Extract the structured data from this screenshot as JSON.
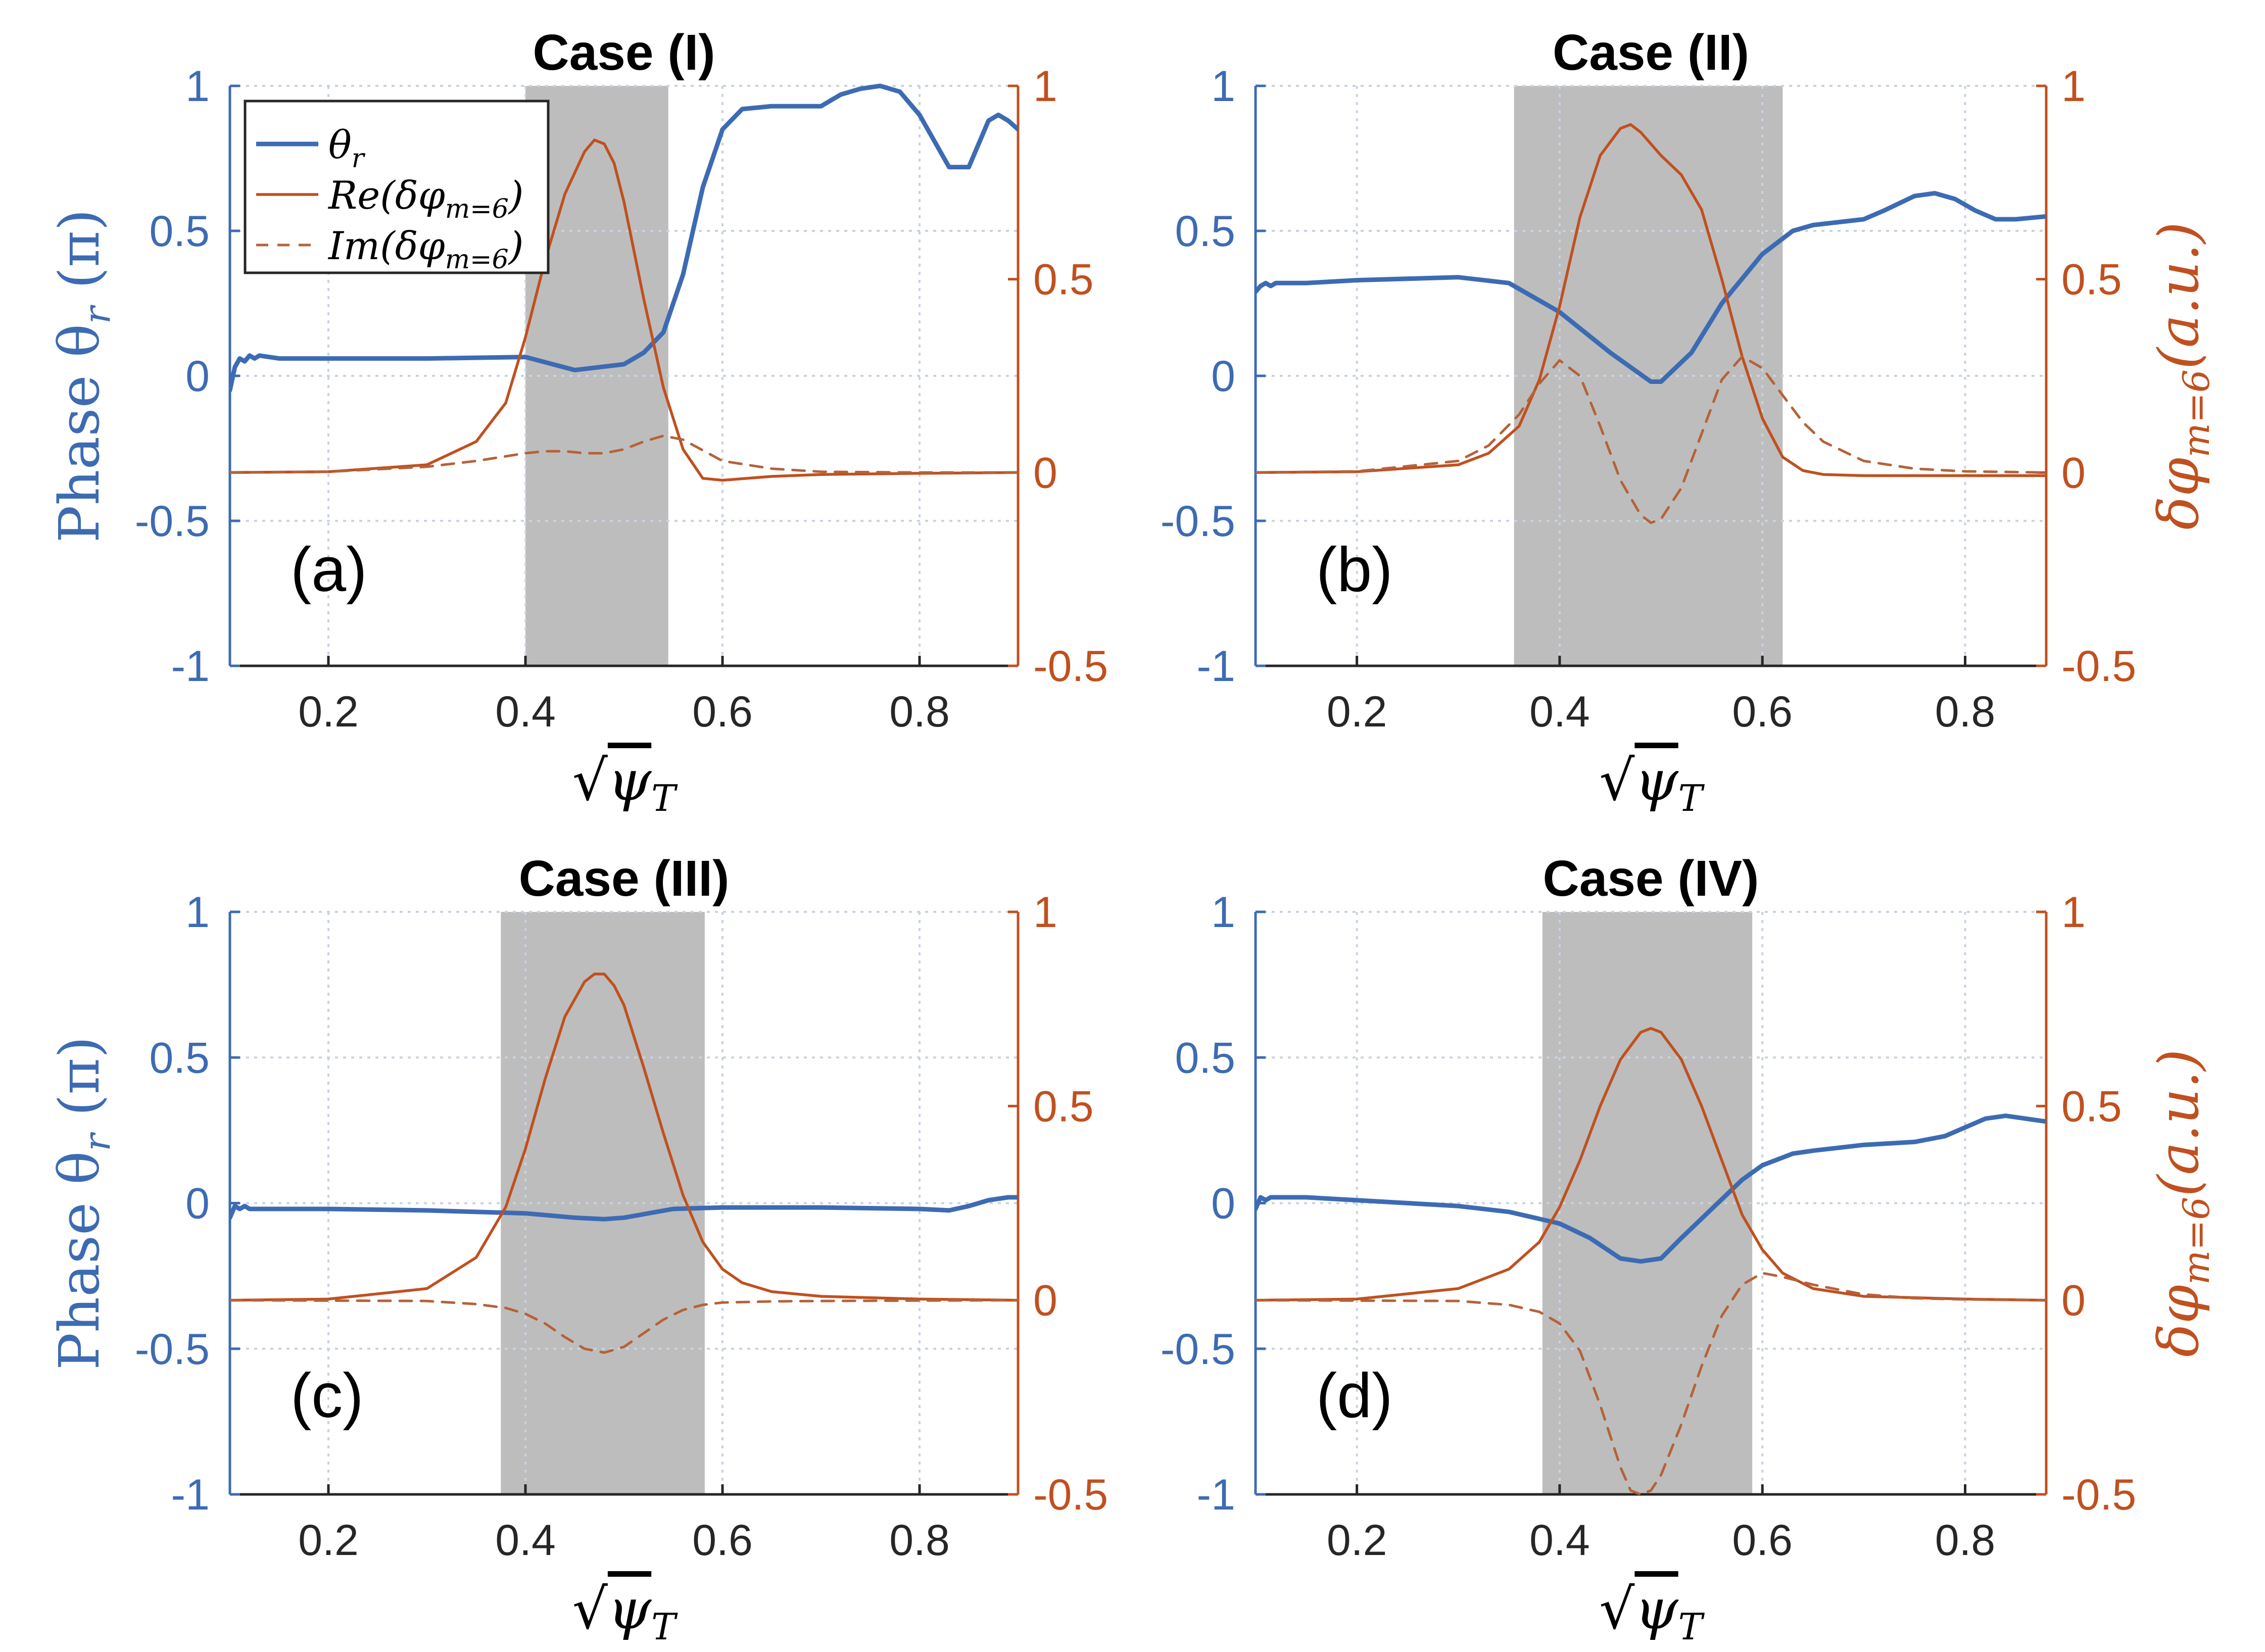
{
  "colors": {
    "theta": "#3D6BB3",
    "re": "#C0501F",
    "im": "#B5623A",
    "shade": "#BDBDBD",
    "grid": "#C9D3E0",
    "axis": "#262626"
  },
  "legend": {
    "theta_label": "θ",
    "theta_sub": "r",
    "re_label": "Re(δφ",
    "re_sub": "m=6",
    "re_close": ")",
    "im_label": "Im(δφ",
    "im_sub": "m=6",
    "im_close": ")"
  },
  "axis_text": {
    "xlabel_radical": "√",
    "xlabel_main": "ψ",
    "xlabel_sub": "T",
    "ylabel_left": "Phase θ",
    "ylabel_left_sub": "r",
    "ylabel_left_unit": " (π)",
    "ylabel_right": "δφ",
    "ylabel_right_sub": "m=6",
    "ylabel_right_unit": "(a.u.)"
  },
  "chart_data": [
    {
      "type": "line",
      "title": "Case (I)",
      "panel_label": "(a)",
      "xlim": [
        0.1,
        0.9
      ],
      "ylim_left": [
        -1,
        1
      ],
      "ylim_right": [
        -0.5,
        1
      ],
      "xticks": [
        "0.2",
        "0.4",
        "0.6",
        "0.8"
      ],
      "yticks_left": [
        "-1",
        "-0.5",
        "0",
        "0.5",
        "1"
      ],
      "yticks_right": [
        "-0.5",
        "0",
        "0.5",
        "1"
      ],
      "shaded_region": [
        0.4,
        0.545
      ],
      "series": [
        {
          "name": "θr",
          "axis": "left",
          "style": "solid",
          "x": [
            0.1,
            0.105,
            0.11,
            0.115,
            0.12,
            0.125,
            0.13,
            0.15,
            0.2,
            0.3,
            0.4,
            0.45,
            0.5,
            0.52,
            0.54,
            0.56,
            0.58,
            0.6,
            0.62,
            0.65,
            0.7,
            0.72,
            0.74,
            0.76,
            0.78,
            0.8,
            0.82,
            0.83,
            0.85,
            0.86,
            0.87,
            0.88,
            0.89,
            0.9
          ],
          "values": [
            -0.05,
            0.03,
            0.06,
            0.05,
            0.07,
            0.06,
            0.07,
            0.06,
            0.06,
            0.06,
            0.065,
            0.02,
            0.04,
            0.08,
            0.15,
            0.35,
            0.65,
            0.85,
            0.92,
            0.93,
            0.93,
            0.97,
            0.99,
            1.0,
            0.98,
            0.9,
            0.78,
            0.72,
            0.72,
            0.8,
            0.88,
            0.9,
            0.88,
            0.85
          ]
        },
        {
          "name": "Re(δφm=6)",
          "axis": "right",
          "style": "solid",
          "x": [
            0.1,
            0.2,
            0.3,
            0.35,
            0.38,
            0.4,
            0.42,
            0.44,
            0.46,
            0.47,
            0.48,
            0.49,
            0.5,
            0.52,
            0.54,
            0.56,
            0.58,
            0.6,
            0.65,
            0.7,
            0.8,
            0.9
          ],
          "values": [
            0.0,
            0.002,
            0.02,
            0.08,
            0.18,
            0.35,
            0.55,
            0.72,
            0.83,
            0.86,
            0.85,
            0.8,
            0.7,
            0.45,
            0.22,
            0.06,
            -0.015,
            -0.02,
            -0.01,
            -0.005,
            -0.002,
            0.0
          ]
        },
        {
          "name": "Im(δφm=6)",
          "axis": "right",
          "style": "dashed",
          "x": [
            0.1,
            0.2,
            0.3,
            0.35,
            0.4,
            0.42,
            0.44,
            0.46,
            0.48,
            0.5,
            0.52,
            0.54,
            0.56,
            0.6,
            0.65,
            0.7,
            0.8,
            0.9
          ],
          "values": [
            0.0,
            0.002,
            0.015,
            0.03,
            0.05,
            0.055,
            0.055,
            0.05,
            0.05,
            0.06,
            0.08,
            0.095,
            0.085,
            0.03,
            0.01,
            0.002,
            0.0,
            0.0
          ]
        }
      ]
    },
    {
      "type": "line",
      "title": "Case (II)",
      "panel_label": "(b)",
      "xlim": [
        0.1,
        0.88
      ],
      "ylim_left": [
        -1,
        1
      ],
      "ylim_right": [
        -0.5,
        1
      ],
      "xticks": [
        "0.2",
        "0.4",
        "0.6",
        "0.8"
      ],
      "yticks_left": [
        "-1",
        "-0.5",
        "0",
        "0.5",
        "1"
      ],
      "yticks_right": [
        "-0.5",
        "0",
        "0.5",
        "1"
      ],
      "shaded_region": [
        0.355,
        0.62
      ],
      "series": [
        {
          "name": "θr",
          "axis": "left",
          "style": "solid",
          "x": [
            0.1,
            0.105,
            0.11,
            0.115,
            0.12,
            0.15,
            0.2,
            0.3,
            0.35,
            0.4,
            0.45,
            0.49,
            0.5,
            0.53,
            0.56,
            0.6,
            0.63,
            0.65,
            0.7,
            0.72,
            0.75,
            0.77,
            0.79,
            0.81,
            0.83,
            0.85,
            0.88
          ],
          "values": [
            0.29,
            0.31,
            0.32,
            0.31,
            0.32,
            0.32,
            0.33,
            0.34,
            0.32,
            0.22,
            0.08,
            -0.02,
            -0.02,
            0.08,
            0.25,
            0.42,
            0.5,
            0.52,
            0.54,
            0.57,
            0.62,
            0.63,
            0.61,
            0.57,
            0.54,
            0.54,
            0.55
          ]
        },
        {
          "name": "Re(δφm=6)",
          "axis": "right",
          "style": "solid",
          "x": [
            0.1,
            0.2,
            0.3,
            0.33,
            0.36,
            0.38,
            0.4,
            0.42,
            0.44,
            0.46,
            0.47,
            0.48,
            0.5,
            0.52,
            0.54,
            0.56,
            0.58,
            0.6,
            0.62,
            0.64,
            0.66,
            0.7,
            0.8,
            0.88
          ],
          "values": [
            0.0,
            0.002,
            0.02,
            0.05,
            0.12,
            0.24,
            0.43,
            0.66,
            0.82,
            0.89,
            0.9,
            0.88,
            0.82,
            0.77,
            0.68,
            0.5,
            0.3,
            0.14,
            0.04,
            0.005,
            -0.005,
            -0.008,
            -0.008,
            -0.008
          ]
        },
        {
          "name": "Im(δφm=6)",
          "axis": "right",
          "style": "dashed",
          "x": [
            0.1,
            0.2,
            0.3,
            0.33,
            0.36,
            0.38,
            0.4,
            0.42,
            0.44,
            0.46,
            0.48,
            0.49,
            0.5,
            0.52,
            0.54,
            0.56,
            0.58,
            0.6,
            0.62,
            0.64,
            0.66,
            0.7,
            0.75,
            0.8,
            0.88
          ],
          "values": [
            0.0,
            0.003,
            0.03,
            0.07,
            0.15,
            0.23,
            0.29,
            0.25,
            0.12,
            -0.02,
            -0.11,
            -0.13,
            -0.12,
            -0.04,
            0.1,
            0.24,
            0.3,
            0.27,
            0.2,
            0.13,
            0.08,
            0.03,
            0.01,
            0.003,
            0.0
          ]
        }
      ]
    },
    {
      "type": "line",
      "title": "Case (III)",
      "panel_label": "(c)",
      "xlim": [
        0.1,
        0.9
      ],
      "ylim_left": [
        -1,
        1
      ],
      "ylim_right": [
        -0.5,
        1
      ],
      "xticks": [
        "0.2",
        "0.4",
        "0.6",
        "0.8"
      ],
      "yticks_left": [
        "-1",
        "-0.5",
        "0",
        "0.5",
        "1"
      ],
      "yticks_right": [
        "-0.5",
        "0",
        "0.5",
        "1"
      ],
      "shaded_region": [
        0.375,
        0.582
      ],
      "series": [
        {
          "name": "θr",
          "axis": "left",
          "style": "solid",
          "x": [
            0.1,
            0.105,
            0.11,
            0.115,
            0.12,
            0.15,
            0.2,
            0.3,
            0.4,
            0.45,
            0.48,
            0.5,
            0.55,
            0.6,
            0.7,
            0.8,
            0.83,
            0.85,
            0.87,
            0.89,
            0.9
          ],
          "values": [
            -0.05,
            -0.01,
            -0.02,
            -0.01,
            -0.02,
            -0.02,
            -0.02,
            -0.025,
            -0.035,
            -0.05,
            -0.055,
            -0.05,
            -0.02,
            -0.015,
            -0.015,
            -0.02,
            -0.025,
            -0.01,
            0.01,
            0.02,
            0.02
          ]
        },
        {
          "name": "Re(δφm=6)",
          "axis": "right",
          "style": "solid",
          "x": [
            0.1,
            0.2,
            0.3,
            0.35,
            0.38,
            0.4,
            0.42,
            0.44,
            0.46,
            0.47,
            0.48,
            0.49,
            0.5,
            0.52,
            0.54,
            0.56,
            0.58,
            0.6,
            0.62,
            0.65,
            0.7,
            0.8,
            0.9
          ],
          "values": [
            0.0,
            0.003,
            0.03,
            0.11,
            0.24,
            0.39,
            0.57,
            0.73,
            0.82,
            0.84,
            0.84,
            0.81,
            0.76,
            0.6,
            0.43,
            0.27,
            0.15,
            0.08,
            0.045,
            0.022,
            0.01,
            0.003,
            0.0
          ]
        },
        {
          "name": "Im(δφm=6)",
          "axis": "right",
          "style": "dashed",
          "x": [
            0.1,
            0.3,
            0.35,
            0.38,
            0.4,
            0.42,
            0.44,
            0.46,
            0.48,
            0.5,
            0.52,
            0.54,
            0.56,
            0.58,
            0.6,
            0.65,
            0.7,
            0.8,
            0.9
          ],
          "values": [
            0.0,
            -0.002,
            -0.01,
            -0.02,
            -0.035,
            -0.06,
            -0.095,
            -0.125,
            -0.135,
            -0.12,
            -0.085,
            -0.05,
            -0.025,
            -0.012,
            -0.006,
            -0.003,
            -0.002,
            -0.001,
            0.0
          ]
        }
      ]
    },
    {
      "type": "line",
      "title": "Case (IV)",
      "panel_label": "(d)",
      "xlim": [
        0.1,
        0.88
      ],
      "ylim_left": [
        -1,
        1
      ],
      "ylim_right": [
        -0.5,
        1
      ],
      "xticks": [
        "0.2",
        "0.4",
        "0.6",
        "0.8"
      ],
      "yticks_left": [
        "-1",
        "-0.5",
        "0",
        "0.5",
        "1"
      ],
      "yticks_right": [
        "-0.5",
        "0",
        "0.5",
        "1"
      ],
      "shaded_region": [
        0.383,
        0.59
      ],
      "series": [
        {
          "name": "θr",
          "axis": "left",
          "style": "solid",
          "x": [
            0.1,
            0.105,
            0.11,
            0.115,
            0.12,
            0.15,
            0.2,
            0.25,
            0.3,
            0.35,
            0.4,
            0.43,
            0.46,
            0.48,
            0.5,
            0.52,
            0.55,
            0.58,
            0.6,
            0.63,
            0.65,
            0.7,
            0.75,
            0.78,
            0.8,
            0.82,
            0.84,
            0.86,
            0.88
          ],
          "values": [
            -0.02,
            0.02,
            0.01,
            0.02,
            0.02,
            0.02,
            0.01,
            0.0,
            -0.01,
            -0.03,
            -0.07,
            -0.12,
            -0.19,
            -0.2,
            -0.19,
            -0.12,
            -0.02,
            0.08,
            0.13,
            0.17,
            0.18,
            0.2,
            0.21,
            0.23,
            0.26,
            0.29,
            0.3,
            0.29,
            0.28
          ]
        },
        {
          "name": "Re(δφm=6)",
          "axis": "right",
          "style": "solid",
          "x": [
            0.1,
            0.2,
            0.3,
            0.35,
            0.38,
            0.4,
            0.42,
            0.44,
            0.46,
            0.48,
            0.49,
            0.5,
            0.52,
            0.54,
            0.56,
            0.58,
            0.6,
            0.62,
            0.65,
            0.7,
            0.8,
            0.88
          ],
          "values": [
            0.0,
            0.003,
            0.03,
            0.08,
            0.15,
            0.24,
            0.36,
            0.5,
            0.62,
            0.69,
            0.7,
            0.69,
            0.62,
            0.5,
            0.36,
            0.22,
            0.13,
            0.07,
            0.03,
            0.01,
            0.003,
            0.0
          ]
        },
        {
          "name": "Im(δφm=6)",
          "axis": "right",
          "style": "dashed",
          "x": [
            0.1,
            0.3,
            0.35,
            0.38,
            0.4,
            0.42,
            0.44,
            0.46,
            0.47,
            0.48,
            0.49,
            0.5,
            0.52,
            0.54,
            0.56,
            0.58,
            0.6,
            0.62,
            0.65,
            0.7,
            0.75,
            0.8,
            0.88
          ],
          "values": [
            0.0,
            -0.002,
            -0.012,
            -0.03,
            -0.06,
            -0.13,
            -0.27,
            -0.43,
            -0.49,
            -0.5,
            -0.49,
            -0.45,
            -0.32,
            -0.17,
            -0.04,
            0.04,
            0.07,
            0.06,
            0.04,
            0.015,
            0.005,
            0.002,
            0.0
          ]
        }
      ]
    }
  ]
}
